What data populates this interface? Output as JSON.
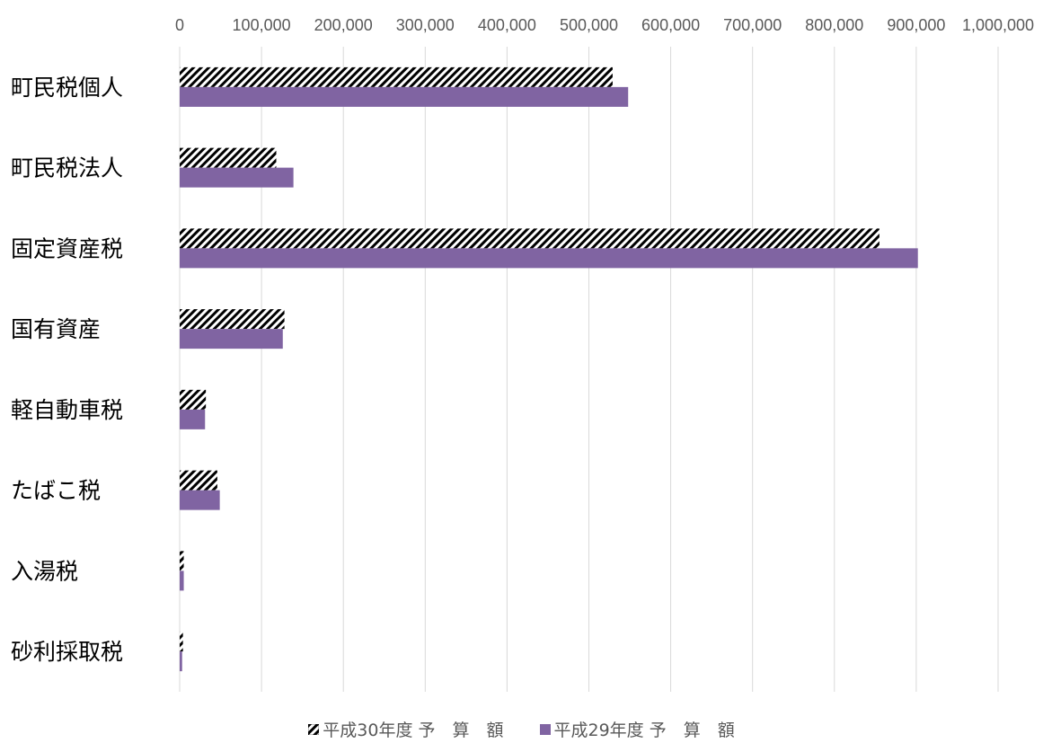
{
  "chart_data": {
    "type": "bar",
    "orientation": "horizontal",
    "categories": [
      "町民税個人",
      "町民税法人",
      "固定資産税",
      "国有資産",
      "軽自動車税",
      "たばこ税",
      "入湯税",
      "砂利採取税"
    ],
    "series": [
      {
        "name": "平成30年度 予　算　額",
        "values": [
          529000,
          118000,
          855000,
          128000,
          32000,
          46000,
          5000,
          4000
        ],
        "style": "hatched",
        "color": "#000000"
      },
      {
        "name": "平成29年度 予　算　額",
        "values": [
          548000,
          139000,
          902000,
          126000,
          31000,
          49000,
          5000,
          3000
        ],
        "style": "solid",
        "color": "#8064a2"
      }
    ],
    "xlim": [
      0,
      1000000
    ],
    "ticks": [
      "0",
      "100,000",
      "200,000",
      "300,000",
      "400,000",
      "500,000",
      "600,000",
      "700,000",
      "800,000",
      "900,000",
      "1,000,000"
    ],
    "tick_values": [
      0,
      100000,
      200000,
      300000,
      400000,
      500000,
      600000,
      700000,
      800000,
      900000,
      1000000
    ],
    "axis_position": "top",
    "grid": true,
    "legend_position": "bottom"
  }
}
